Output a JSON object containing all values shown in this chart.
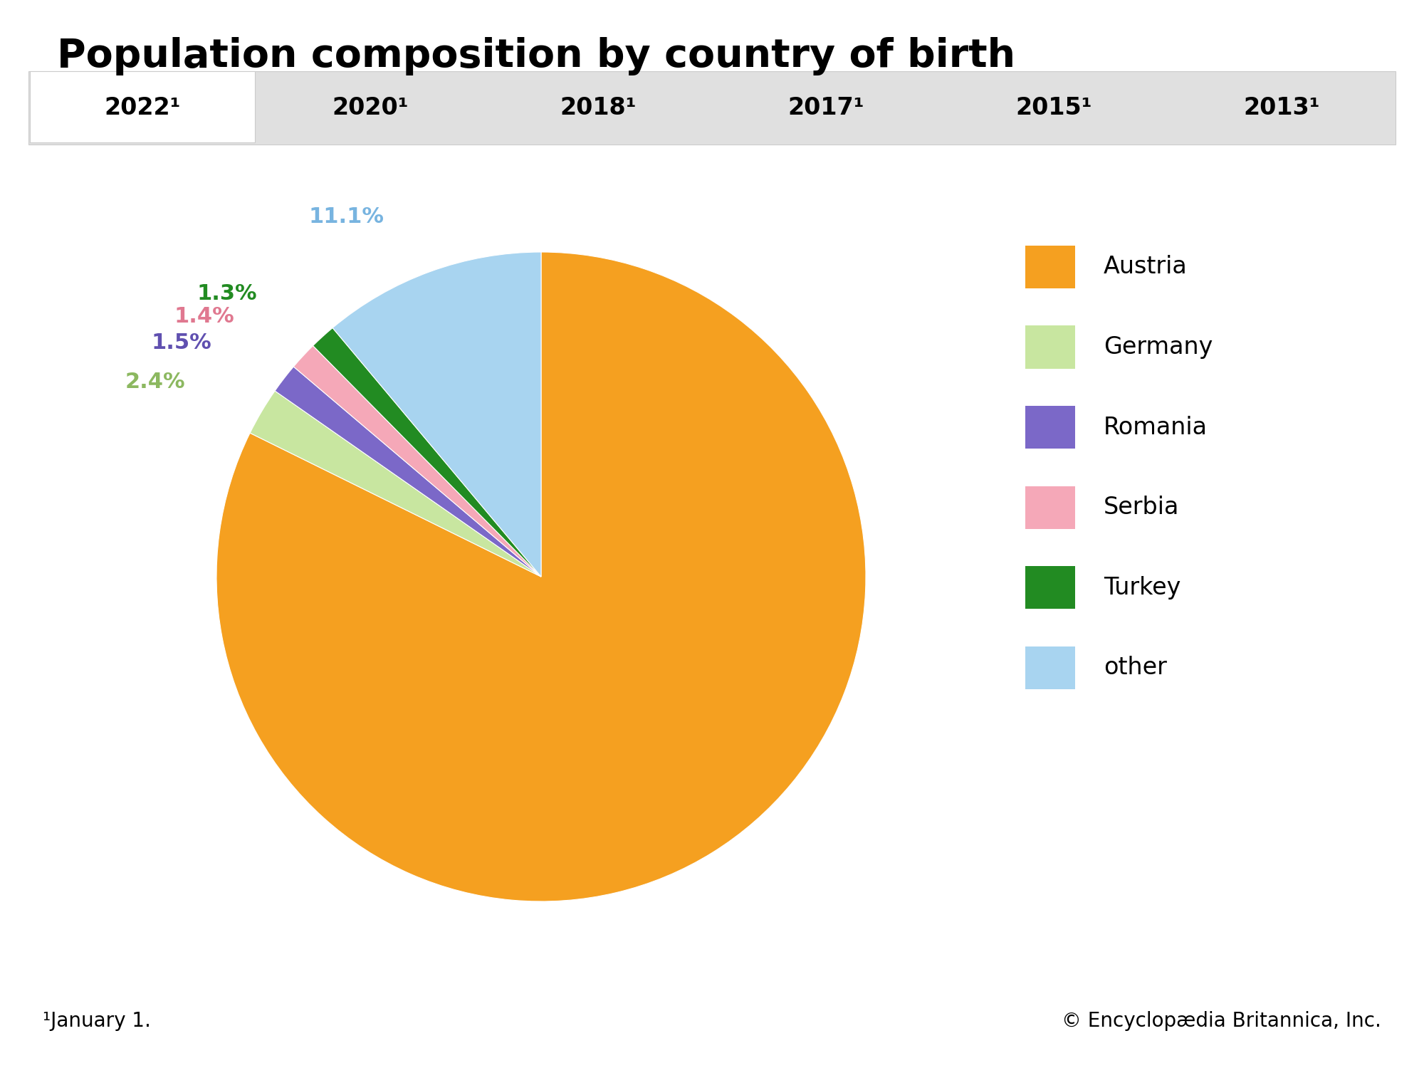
{
  "title": "Population composition by country of birth",
  "tab_years": [
    "2022¹",
    "2020¹",
    "2018¹",
    "2017¹",
    "2015¹",
    "2013¹"
  ],
  "active_tab": 0,
  "slices": [
    {
      "label": "Austria",
      "value": 82.3,
      "color": "#F5A020",
      "label_color": "#F5A020"
    },
    {
      "label": "Germany",
      "value": 2.4,
      "color": "#C8E6A0",
      "label_color": "#8CB860"
    },
    {
      "label": "Romania",
      "value": 1.5,
      "color": "#7B68C8",
      "label_color": "#6050B0"
    },
    {
      "label": "Serbia",
      "value": 1.4,
      "color": "#F5A8B8",
      "label_color": "#E07890"
    },
    {
      "label": "Turkey",
      "value": 1.3,
      "color": "#228B22",
      "label_color": "#228B22"
    },
    {
      "label": "other",
      "value": 11.1,
      "color": "#A8D4F0",
      "label_color": "#78B4E0"
    }
  ],
  "footnote_left": "¹January 1.",
  "footnote_right": "© Encyclopædia Britannica, Inc.",
  "background_color": "#ffffff",
  "tab_bar_color": "#e0e0e0",
  "tab_active_color": "#ffffff",
  "tab_text_color": "#000000",
  "title_fontsize": 40,
  "tab_fontsize": 24,
  "legend_fontsize": 24,
  "label_fontsize": 22,
  "footnote_fontsize": 20
}
